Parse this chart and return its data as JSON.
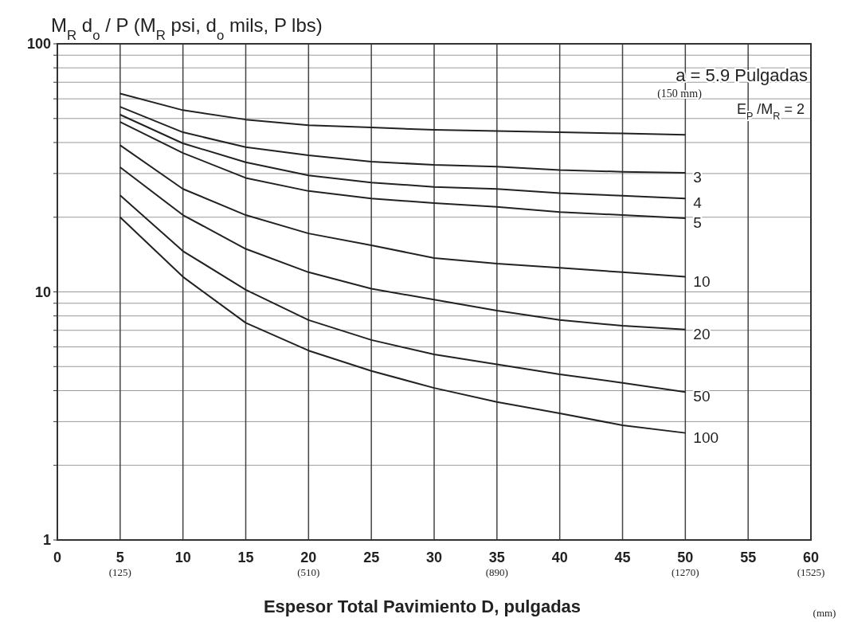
{
  "chart_data": {
    "type": "line",
    "title": "M$_{R}$ d$_{o}$ / P  (M$_{R}$ psi, d$_{o}$ mils, P lbs)",
    "xlabel": "Espesor Total Pavimiento D, pulgadas",
    "x": [
      5,
      10,
      15,
      20,
      25,
      30,
      35,
      40,
      45,
      50
    ],
    "series": [
      {
        "name": "E$_{P}$ /M$_{R}$ = 2",
        "color": "#222222",
        "values": [
          63,
          54,
          49.5,
          47,
          46,
          45,
          44.5,
          44,
          43.5,
          43
        ]
      },
      {
        "name": "3",
        "color": "#222222",
        "values": [
          55.7,
          44,
          38.3,
          35.5,
          33.5,
          32.5,
          32,
          31,
          30.5,
          30.2
        ]
      },
      {
        "name": "4",
        "color": "#222222",
        "values": [
          51.8,
          39.7,
          33.3,
          29.5,
          27.6,
          26.5,
          26,
          25,
          24.4,
          23.8
        ]
      },
      {
        "name": "5",
        "color": "#222222",
        "values": [
          48.4,
          36.3,
          28.8,
          25.5,
          23.8,
          22.8,
          22,
          21,
          20.4,
          19.8
        ]
      },
      {
        "name": "10",
        "color": "#222222",
        "values": [
          39,
          26,
          20.4,
          17.2,
          15.4,
          13.7,
          13,
          12.5,
          12,
          11.5
        ]
      },
      {
        "name": "20",
        "color": "#222222",
        "values": [
          31.8,
          20.4,
          14.9,
          12,
          10.3,
          9.3,
          8.4,
          7.7,
          7.3,
          7.05
        ]
      },
      {
        "name": "50",
        "color": "#222222",
        "values": [
          24.5,
          14.6,
          10.2,
          7.7,
          6.4,
          5.6,
          5.1,
          4.65,
          4.3,
          3.95
        ]
      },
      {
        "name": "100",
        "color": "#222222",
        "values": [
          20,
          11.5,
          7.5,
          5.8,
          4.8,
          4.1,
          3.6,
          3.24,
          2.9,
          2.7
        ]
      }
    ],
    "xlim": [
      0,
      60
    ],
    "xticks": [
      0,
      {
        "value": 5,
        "label": "5$_{(125)}$"
      },
      10,
      15,
      {
        "value": 20,
        "label": "20$_{(510)}$"
      },
      25,
      30,
      {
        "value": 35,
        "label": "35$_{(890)}$"
      },
      40,
      45,
      {
        "value": 50,
        "label": "50$_{(1270)}$"
      },
      55,
      {
        "value": 60,
        "label": "60$_{(1525)}$"
      }
    ],
    "ylim": [
      1,
      100
    ],
    "yticks": [
      1,
      {
        "value": 2,
        "label": null
      },
      {
        "value": 3,
        "label": null
      },
      {
        "value": 4,
        "label": null
      },
      {
        "value": 5,
        "label": null
      },
      {
        "value": 6,
        "label": null
      },
      {
        "value": 7,
        "label": null
      },
      {
        "value": 8,
        "label": null
      },
      {
        "value": 9,
        "label": null
      },
      10,
      {
        "value": 20,
        "label": null
      },
      {
        "value": 30,
        "label": null
      },
      {
        "value": 40,
        "label": null
      },
      {
        "value": 50,
        "label": null
      },
      {
        "value": 60,
        "label": null
      },
      {
        "value": 70,
        "label": null
      },
      {
        "value": 80,
        "label": null
      },
      {
        "value": 90,
        "label": null
      },
      100
    ],
    "log": true,
    "grid": true,
    "marker": "none",
    "line_style": "solid",
    "annotations": [
      "a = 5.9 Pulgadas",
      "(150 mm)",
      "(mm)"
    ]
  }
}
